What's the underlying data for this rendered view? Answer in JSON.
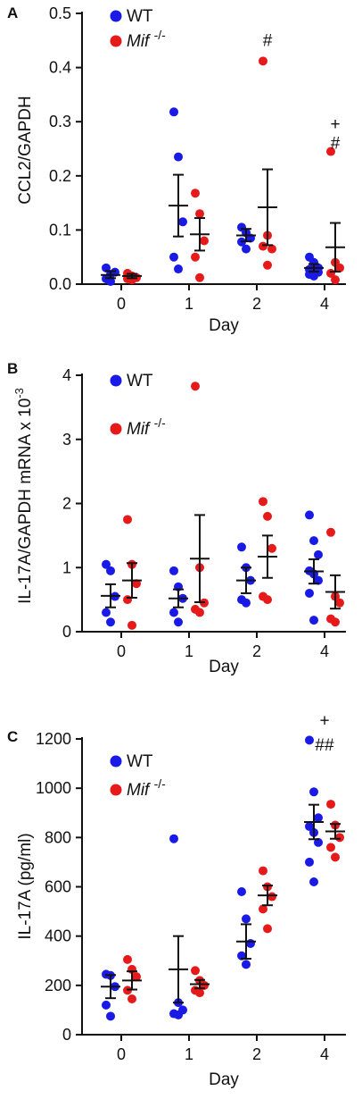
{
  "colors": {
    "WT": "#1a1ae6",
    "Mif": "#e61a1a",
    "axis": "#111111"
  },
  "chart_data": [
    {
      "type": "scatter",
      "panel_label": "A",
      "ylabel": "CCL2/GAPDH",
      "xlabel": "Day",
      "categories": [
        "0",
        "1",
        "2",
        "4"
      ],
      "ylim": [
        0,
        0.5
      ],
      "yticks": [
        "0.0",
        "0.1",
        "0.2",
        "0.3",
        "0.4",
        "0.5"
      ],
      "ytick_values": [
        0,
        0.1,
        0.2,
        0.3,
        0.4,
        0.5
      ],
      "legend": {
        "wt": "WT",
        "mif_base": "Mif",
        "mif_sup": "-/-"
      },
      "annotations": [
        {
          "category": "2",
          "group": "Mif",
          "value": 0.45,
          "text": "#"
        },
        {
          "category": "4",
          "group": "Mif",
          "value": 0.295,
          "text": "+"
        },
        {
          "category": "4",
          "group": "Mif",
          "value": 0.26,
          "text": "#"
        }
      ],
      "series": [
        {
          "name": "WT",
          "points": [
            [
              0.01,
              0.018,
              0.022,
              0.03,
              0.005
            ],
            [
              0.318,
              0.235,
              0.115,
              0.05,
              0.028
            ],
            [
              0.105,
              0.095,
              0.085,
              0.078,
              0.065
            ],
            [
              0.05,
              0.04,
              0.03,
              0.027,
              0.025,
              0.022,
              0.018,
              0.015
            ]
          ],
          "mean": [
            0.017,
            0.145,
            0.09,
            0.03
          ],
          "err_lo": [
            0.011,
            0.088,
            0.079,
            0.023
          ],
          "err_hi": [
            0.024,
            0.202,
            0.102,
            0.037
          ]
        },
        {
          "name": "Mif -/-",
          "points": [
            [
              0.02,
              0.015,
              0.012,
              0.01,
              0.008
            ],
            [
              0.168,
              0.13,
              0.08,
              0.05,
              0.012
            ],
            [
              0.412,
              0.09,
              0.065,
              0.07,
              0.035
            ],
            [
              0.245,
              0.04,
              0.03,
              0.02,
              0.008
            ]
          ],
          "mean": [
            0.015,
            0.092,
            0.142,
            0.068
          ],
          "err_lo": [
            0.011,
            0.062,
            0.072,
            0.023
          ],
          "err_hi": [
            0.019,
            0.122,
            0.212,
            0.113
          ]
        }
      ]
    },
    {
      "type": "scatter",
      "panel_label": "B",
      "ylabel": "IL-17A/GAPDH mRNA x 10",
      "ylabel_sup": "-3",
      "xlabel": "Day",
      "categories": [
        "0",
        "1",
        "2",
        "4"
      ],
      "ylim": [
        0,
        4
      ],
      "yticks": [
        "0",
        "1",
        "2",
        "3",
        "4"
      ],
      "ytick_values": [
        0,
        1,
        2,
        3,
        4
      ],
      "legend": {
        "wt": "WT",
        "mif_base": "Mif",
        "mif_sup": "-/-"
      },
      "annotations": [],
      "series": [
        {
          "name": "WT",
          "points": [
            [
              1.05,
              0.95,
              0.55,
              0.3,
              0.15
            ],
            [
              0.95,
              0.7,
              0.52,
              0.3,
              0.15
            ],
            [
              1.32,
              1.0,
              0.8,
              0.5,
              0.45
            ],
            [
              1.82,
              1.42,
              1.2,
              0.95,
              0.9,
              0.8,
              0.6,
              0.18
            ]
          ],
          "mean": [
            0.56,
            0.52,
            0.8,
            0.94
          ],
          "err_lo": [
            0.38,
            0.38,
            0.6,
            0.75
          ],
          "err_hi": [
            0.74,
            0.66,
            1.0,
            1.13
          ]
        },
        {
          "name": "Mif -/-",
          "points": [
            [
              1.75,
              1.05,
              0.75,
              0.5,
              0.1
            ],
            [
              3.83,
              1.0,
              0.45,
              0.35,
              0.3
            ],
            [
              2.03,
              1.8,
              1.3,
              0.55,
              0.5
            ],
            [
              1.55,
              0.55,
              0.45,
              0.2,
              0.15
            ]
          ],
          "mean": [
            0.8,
            1.14,
            1.17,
            0.62
          ],
          "err_lo": [
            0.53,
            0.46,
            0.84,
            0.36
          ],
          "err_hi": [
            1.07,
            1.82,
            1.5,
            0.88
          ]
        }
      ]
    },
    {
      "type": "scatter",
      "panel_label": "C",
      "ylabel": "IL-17A (pg/ml)",
      "xlabel": "Day",
      "categories": [
        "0",
        "1",
        "2",
        "4"
      ],
      "ylim": [
        0,
        1200
      ],
      "yticks": [
        "0",
        "200",
        "400",
        "600",
        "800",
        "1000",
        "1200"
      ],
      "ytick_values": [
        0,
        200,
        400,
        600,
        800,
        1000,
        1200
      ],
      "legend": {
        "wt": "WT",
        "mif_base": "Mif",
        "mif_sup": "-/-"
      },
      "annotations": [
        {
          "category": "4",
          "group": "center",
          "value": 1275,
          "text": "+"
        },
        {
          "category": "4",
          "group": "center",
          "value": 1175,
          "text": "##"
        }
      ],
      "series": [
        {
          "name": "WT",
          "points": [
            [
              245,
              240,
              195,
              120,
              75
            ],
            [
              795,
              130,
              100,
              85,
              80
            ],
            [
              580,
              470,
              370,
              320,
              285
            ],
            [
              1195,
              985,
              880,
              845,
              820,
              780,
              700,
              620
            ]
          ],
          "mean": [
            195,
            265,
            378,
            863
          ],
          "err_lo": [
            148,
            130,
            308,
            793
          ],
          "err_hi": [
            242,
            400,
            448,
            933
          ]
        },
        {
          "name": "Mif -/-",
          "points": [
            [
              305,
              265,
              235,
              180,
              145
            ],
            [
              260,
              220,
              200,
              180,
              170
            ],
            [
              665,
              600,
              560,
              510,
              430
            ],
            [
              935,
              850,
              800,
              760,
              720
            ]
          ],
          "mean": [
            220,
            205,
            565,
            825
          ],
          "err_lo": [
            183,
            188,
            525,
            795
          ],
          "err_hi": [
            257,
            222,
            605,
            855
          ]
        }
      ]
    }
  ]
}
